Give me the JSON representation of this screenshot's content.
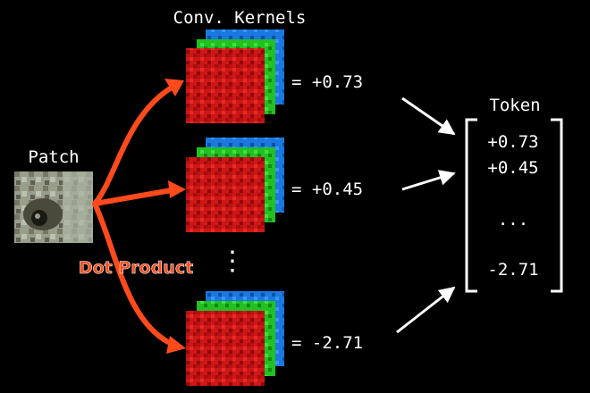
{
  "title": "Conv. Kernels",
  "patch": {
    "label": "Patch"
  },
  "operation_label": "Dot Product",
  "kernels": [
    {
      "result": "= +0.73"
    },
    {
      "result": "= +0.45"
    },
    {
      "result": "= -2.71"
    }
  ],
  "vertical_ellipsis": "⋮",
  "token": {
    "label": "Token",
    "values": [
      "+0.73",
      "+0.45",
      "...",
      "-2.71"
    ]
  },
  "colors": {
    "background": "#000000",
    "arrow_orange": "#ff4a1c",
    "kernel_red": "#d81818",
    "kernel_green": "#22c022",
    "kernel_blue": "#1a78e0",
    "text": "#ffffff"
  }
}
